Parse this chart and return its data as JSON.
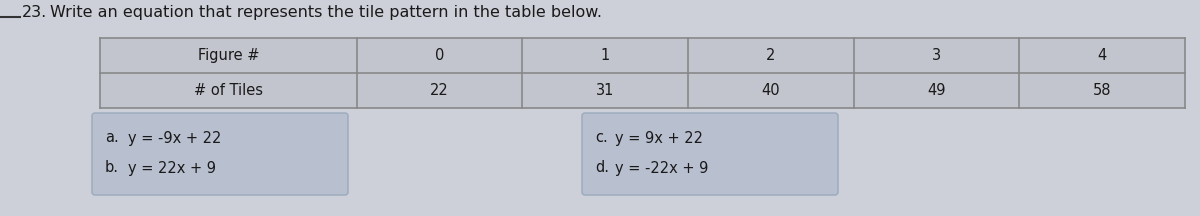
{
  "question_number": "23.",
  "question_text": "Write an equation that represents the tile pattern in the table below.",
  "table_headers": [
    "Figure #",
    "0",
    "1",
    "2",
    "3",
    "4"
  ],
  "table_row2": [
    "# of Tiles",
    "22",
    "31",
    "40",
    "49",
    "58"
  ],
  "options": [
    {
      "label": "a.",
      "text": "y = -9x + 22",
      "highlighted": true,
      "col": "left",
      "row": 0
    },
    {
      "label": "b.",
      "text": "y = 22x + 9",
      "highlighted": true,
      "col": "left",
      "row": 1
    },
    {
      "label": "c.",
      "text": "y = 9x + 22",
      "highlighted": true,
      "col": "right",
      "row": 0
    },
    {
      "label": "d.",
      "text": "y = -22x + 9",
      "highlighted": true,
      "col": "right",
      "row": 1
    }
  ],
  "bg_color": "#cdd0d9",
  "table_line_color": "#888888",
  "table_fill_color": "#c2c5ce",
  "highlight_color": "#b8bfcf",
  "highlight_edge": "#9aaabb",
  "text_color": "#1a1a1a",
  "font_size": 10.5,
  "title_font_size": 11.5
}
